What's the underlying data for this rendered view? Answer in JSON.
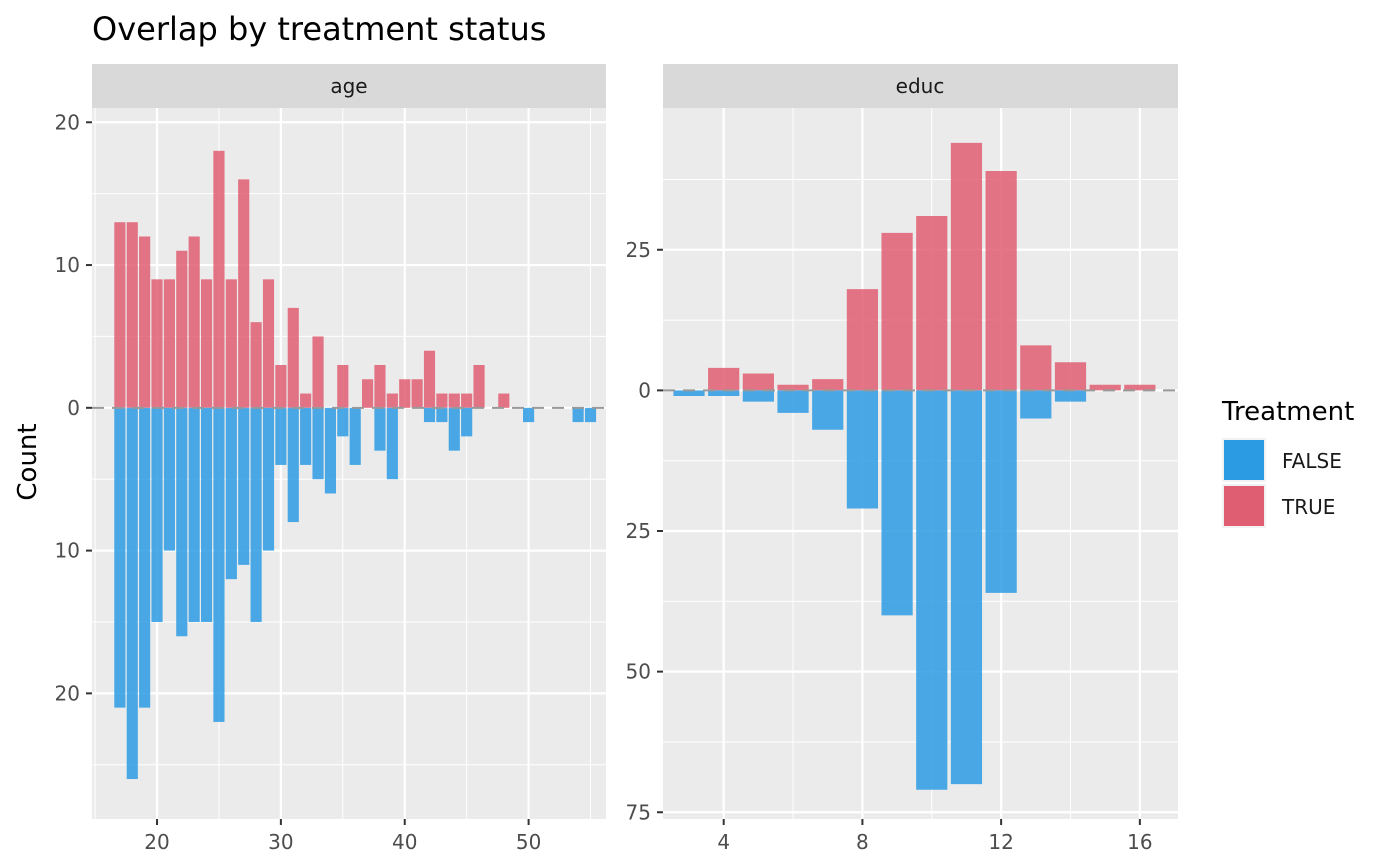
{
  "chart_data": {
    "type": "bar",
    "title": "Overlap by treatment status",
    "ylabel": "Count",
    "legend": {
      "title": "Treatment",
      "placement": "right",
      "items": [
        {
          "label": "FALSE",
          "color": "#2b9be3"
        },
        {
          "label": "TRUE",
          "color": "#e05e72"
        }
      ]
    },
    "grid": true,
    "zero_line": "dashed",
    "panels": [
      {
        "strip": "age",
        "xlim": [
          14.75,
          56.25
        ],
        "ylim": [
          -28.8,
          21.0
        ],
        "x_ticks": [
          20,
          30,
          40,
          50
        ],
        "y_ticks": [
          {
            "value": 20,
            "label": "20"
          },
          {
            "value": 10,
            "label": "10"
          },
          {
            "value": 0,
            "label": "0"
          },
          {
            "value": -10,
            "label": "10"
          },
          {
            "value": -20,
            "label": "20"
          }
        ],
        "bar_width": 0.9,
        "true_bars": [
          {
            "x": 17,
            "count": 13
          },
          {
            "x": 18,
            "count": 13
          },
          {
            "x": 19,
            "count": 12
          },
          {
            "x": 20,
            "count": 9
          },
          {
            "x": 21,
            "count": 9
          },
          {
            "x": 22,
            "count": 11
          },
          {
            "x": 23,
            "count": 12
          },
          {
            "x": 24,
            "count": 9
          },
          {
            "x": 25,
            "count": 18
          },
          {
            "x": 26,
            "count": 9
          },
          {
            "x": 27,
            "count": 16
          },
          {
            "x": 28,
            "count": 6
          },
          {
            "x": 29,
            "count": 9
          },
          {
            "x": 30,
            "count": 3
          },
          {
            "x": 31,
            "count": 7
          },
          {
            "x": 32,
            "count": 1
          },
          {
            "x": 33,
            "count": 5
          },
          {
            "x": 35,
            "count": 3
          },
          {
            "x": 37,
            "count": 2
          },
          {
            "x": 38,
            "count": 3
          },
          {
            "x": 39,
            "count": 1
          },
          {
            "x": 40,
            "count": 2
          },
          {
            "x": 41,
            "count": 2
          },
          {
            "x": 42,
            "count": 4
          },
          {
            "x": 43,
            "count": 1
          },
          {
            "x": 44,
            "count": 1
          },
          {
            "x": 45,
            "count": 1
          },
          {
            "x": 46,
            "count": 3
          },
          {
            "x": 48,
            "count": 1
          }
        ],
        "false_bars": [
          {
            "x": 17,
            "count": 21
          },
          {
            "x": 18,
            "count": 26
          },
          {
            "x": 19,
            "count": 21
          },
          {
            "x": 20,
            "count": 15
          },
          {
            "x": 21,
            "count": 10
          },
          {
            "x": 22,
            "count": 16
          },
          {
            "x": 23,
            "count": 15
          },
          {
            "x": 24,
            "count": 15
          },
          {
            "x": 25,
            "count": 22
          },
          {
            "x": 26,
            "count": 12
          },
          {
            "x": 27,
            "count": 11
          },
          {
            "x": 28,
            "count": 15
          },
          {
            "x": 29,
            "count": 10
          },
          {
            "x": 30,
            "count": 4
          },
          {
            "x": 31,
            "count": 8
          },
          {
            "x": 32,
            "count": 4
          },
          {
            "x": 33,
            "count": 5
          },
          {
            "x": 34,
            "count": 6
          },
          {
            "x": 35,
            "count": 2
          },
          {
            "x": 36,
            "count": 4
          },
          {
            "x": 38,
            "count": 3
          },
          {
            "x": 39,
            "count": 5
          },
          {
            "x": 42,
            "count": 1
          },
          {
            "x": 43,
            "count": 1
          },
          {
            "x": 44,
            "count": 3
          },
          {
            "x": 45,
            "count": 2
          },
          {
            "x": 50,
            "count": 1
          },
          {
            "x": 54,
            "count": 1
          },
          {
            "x": 55,
            "count": 1
          }
        ]
      },
      {
        "strip": "educ",
        "xlim": [
          2.25,
          17.1
        ],
        "ylim": [
          -76.2,
          50.2
        ],
        "x_ticks": [
          4,
          8,
          12,
          16
        ],
        "y_ticks": [
          {
            "value": 25,
            "label": "25"
          },
          {
            "value": 0,
            "label": "0"
          },
          {
            "value": -25,
            "label": "25"
          },
          {
            "value": -50,
            "label": "50"
          },
          {
            "value": -75,
            "label": "75"
          }
        ],
        "bar_width": 0.9,
        "true_bars": [
          {
            "x": 4,
            "count": 4
          },
          {
            "x": 5,
            "count": 3
          },
          {
            "x": 6,
            "count": 1
          },
          {
            "x": 7,
            "count": 2
          },
          {
            "x": 8,
            "count": 18
          },
          {
            "x": 9,
            "count": 28
          },
          {
            "x": 10,
            "count": 31
          },
          {
            "x": 11,
            "count": 44
          },
          {
            "x": 12,
            "count": 39
          },
          {
            "x": 13,
            "count": 8
          },
          {
            "x": 14,
            "count": 5
          },
          {
            "x": 15,
            "count": 1
          },
          {
            "x": 16,
            "count": 1
          }
        ],
        "false_bars": [
          {
            "x": 3,
            "count": 1
          },
          {
            "x": 4,
            "count": 1
          },
          {
            "x": 5,
            "count": 2
          },
          {
            "x": 6,
            "count": 4
          },
          {
            "x": 7,
            "count": 7
          },
          {
            "x": 8,
            "count": 21
          },
          {
            "x": 9,
            "count": 40
          },
          {
            "x": 10,
            "count": 71
          },
          {
            "x": 11,
            "count": 70
          },
          {
            "x": 12,
            "count": 36
          },
          {
            "x": 13,
            "count": 5
          },
          {
            "x": 14,
            "count": 2
          }
        ]
      }
    ]
  }
}
